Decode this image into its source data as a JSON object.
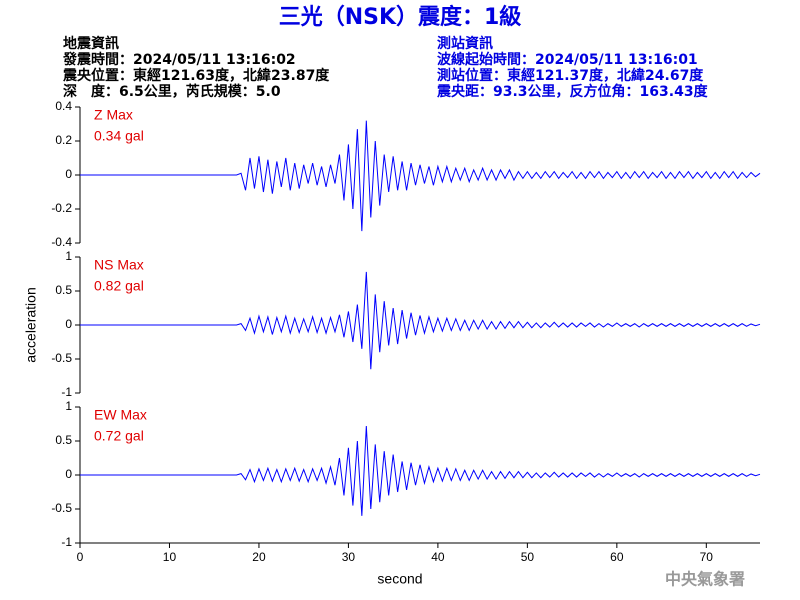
{
  "header": {
    "title": "三光（NSK）震度：1級",
    "left": [
      "地震資訊",
      "發震時間：2024/05/11 13:16:02",
      "震央位置：東經121.63度，北緯23.87度",
      "深　度：6.5公里，芮氏規模：5.0"
    ],
    "right": [
      "測站資訊",
      "波線起始時間：2024/05/11 13:16:01",
      "測站位置：東經121.37度，北緯24.67度",
      "震央距：93.3公里，反方位角：163.43度"
    ]
  },
  "footer": "中央氣象署",
  "chart_data": [
    {
      "type": "line",
      "color": "#0000ff",
      "annotations": [
        "Z Max",
        "0.34 gal"
      ],
      "xlim": [
        0,
        76
      ],
      "ylim": [
        -0.4,
        0.4
      ],
      "yticks": [
        -0.4,
        -0.2,
        0,
        0.2,
        0.4
      ],
      "x": [
        0,
        17.5,
        18,
        18.5,
        19,
        19.5,
        20,
        20.5,
        21,
        21.5,
        22,
        22.5,
        23,
        23.5,
        24,
        24.5,
        25,
        25.5,
        26,
        26.5,
        27,
        27.5,
        28,
        28.5,
        29,
        29.5,
        30,
        30.5,
        31,
        31.5,
        32,
        32.5,
        33,
        33.5,
        34,
        34.5,
        35,
        35.5,
        36,
        36.5,
        37,
        37.5,
        38,
        38.5,
        39,
        39.5,
        40,
        40.5,
        41,
        41.5,
        42,
        42.5,
        43,
        43.5,
        44,
        44.5,
        45,
        45.5,
        46,
        46.5,
        47,
        47.5,
        48,
        48.5,
        49,
        49.5,
        50,
        50.5,
        51,
        51.5,
        52,
        52.5,
        53,
        53.5,
        54,
        54.5,
        55,
        55.5,
        56,
        56.5,
        57,
        57.5,
        58,
        58.5,
        59,
        59.5,
        60,
        60.5,
        61,
        61.5,
        62,
        62.5,
        63,
        63.5,
        64,
        64.5,
        65,
        65.5,
        66,
        66.5,
        67,
        67.5,
        68,
        68.5,
        69,
        69.5,
        70,
        70.5,
        71,
        71.5,
        72,
        72.5,
        73,
        73.5,
        74,
        74.5,
        75,
        75.5,
        76
      ],
      "values": [
        0,
        0,
        0.01,
        -0.09,
        0.1,
        -0.08,
        0.11,
        -0.1,
        0.09,
        -0.11,
        0.08,
        -0.07,
        0.1,
        -0.09,
        0.07,
        -0.08,
        0.06,
        -0.05,
        0.07,
        -0.06,
        0.05,
        -0.07,
        0.06,
        -0.05,
        0.12,
        -0.15,
        0.18,
        -0.2,
        0.27,
        -0.33,
        0.32,
        -0.25,
        0.2,
        -0.18,
        0.12,
        -0.1,
        0.11,
        -0.09,
        0.08,
        -0.09,
        0.07,
        -0.06,
        0.06,
        -0.05,
        0.05,
        -0.06,
        0.05,
        -0.04,
        0.05,
        -0.04,
        0.04,
        -0.03,
        0.04,
        -0.04,
        0.03,
        -0.03,
        0.04,
        -0.03,
        0.03,
        -0.03,
        0.03,
        -0.02,
        0.03,
        -0.03,
        0.02,
        -0.02,
        0.02,
        -0.02,
        0.015,
        -0.02,
        0.02,
        -0.015,
        0.02,
        -0.02,
        0.015,
        -0.015,
        0.02,
        -0.02,
        0.015,
        -0.02,
        0.02,
        -0.015,
        0.02,
        -0.02,
        0.015,
        -0.015,
        0.02,
        -0.02,
        0.015,
        -0.02,
        0.02,
        -0.015,
        0.02,
        -0.02,
        0.015,
        -0.015,
        0.02,
        -0.02,
        0.015,
        -0.02,
        0.02,
        -0.015,
        0.02,
        -0.02,
        0.015,
        -0.015,
        0.02,
        -0.02,
        0.015,
        -0.02,
        0.02,
        -0.015,
        0.02,
        -0.02,
        0.015,
        -0.015,
        0.015,
        -0.01,
        0.01
      ]
    },
    {
      "type": "line",
      "color": "#0000ff",
      "annotations": [
        "NS Max",
        "0.82 gal"
      ],
      "ylabel": "acceleration",
      "xlim": [
        0,
        76
      ],
      "ylim": [
        -1,
        1
      ],
      "yticks": [
        -1,
        -0.5,
        0,
        0.5,
        1
      ],
      "x": [
        0,
        17.5,
        18,
        18.5,
        19,
        19.5,
        20,
        20.5,
        21,
        21.5,
        22,
        22.5,
        23,
        23.5,
        24,
        24.5,
        25,
        25.5,
        26,
        26.5,
        27,
        27.5,
        28,
        28.5,
        29,
        29.5,
        30,
        30.5,
        31,
        31.5,
        32,
        32.5,
        33,
        33.5,
        34,
        34.5,
        35,
        35.5,
        36,
        36.5,
        37,
        37.5,
        38,
        38.5,
        39,
        39.5,
        40,
        40.5,
        41,
        41.5,
        42,
        42.5,
        43,
        43.5,
        44,
        44.5,
        45,
        45.5,
        46,
        46.5,
        47,
        47.5,
        48,
        48.5,
        49,
        49.5,
        50,
        50.5,
        51,
        51.5,
        52,
        52.5,
        53,
        53.5,
        54,
        54.5,
        55,
        55.5,
        56,
        56.5,
        57,
        57.5,
        58,
        58.5,
        59,
        59.5,
        60,
        60.5,
        61,
        61.5,
        62,
        62.5,
        63,
        63.5,
        64,
        64.5,
        65,
        65.5,
        66,
        66.5,
        67,
        67.5,
        68,
        68.5,
        69,
        69.5,
        70,
        70.5,
        71,
        71.5,
        72,
        72.5,
        73,
        73.5,
        74,
        74.5,
        75,
        75.5,
        76
      ],
      "values": [
        0,
        0,
        0.02,
        -0.08,
        0.1,
        -0.12,
        0.13,
        -0.1,
        0.12,
        -0.14,
        0.11,
        -0.1,
        0.13,
        -0.12,
        0.1,
        -0.11,
        0.09,
        -0.1,
        0.12,
        -0.11,
        0.1,
        -0.12,
        0.11,
        -0.1,
        0.15,
        -0.18,
        0.2,
        -0.25,
        0.3,
        -0.35,
        0.78,
        -0.65,
        0.45,
        -0.4,
        0.35,
        -0.3,
        0.25,
        -0.28,
        0.22,
        -0.2,
        0.18,
        -0.15,
        0.14,
        -0.12,
        0.12,
        -0.1,
        0.1,
        -0.09,
        0.1,
        -0.08,
        0.09,
        -0.08,
        0.07,
        -0.08,
        0.07,
        -0.06,
        0.07,
        -0.06,
        0.05,
        -0.06,
        0.05,
        -0.05,
        0.05,
        -0.04,
        0.05,
        -0.04,
        0.04,
        -0.04,
        0.03,
        -0.04,
        0.03,
        -0.03,
        0.04,
        -0.03,
        0.03,
        -0.03,
        0.03,
        -0.03,
        0.03,
        -0.02,
        0.03,
        -0.03,
        0.02,
        -0.03,
        0.02,
        -0.02,
        0.03,
        -0.02,
        0.02,
        -0.02,
        0.02,
        -0.03,
        0.02,
        -0.02,
        0.02,
        -0.02,
        0.02,
        -0.02,
        0.02,
        -0.02,
        0.02,
        -0.02,
        0.02,
        -0.02,
        0.02,
        -0.02,
        0.02,
        -0.02,
        0.02,
        -0.02,
        0.02,
        -0.02,
        0.02,
        -0.02,
        0.02,
        -0.02,
        0.015,
        -0.01,
        0.01
      ]
    },
    {
      "type": "line",
      "color": "#0000ff",
      "annotations": [
        "EW Max",
        "0.72 gal"
      ],
      "xlabel": "second",
      "xlim": [
        0,
        76
      ],
      "ylim": [
        -1,
        1
      ],
      "yticks": [
        -1,
        -0.5,
        0,
        0.5,
        1
      ],
      "xticks": [
        0,
        10,
        20,
        30,
        40,
        50,
        60,
        70
      ],
      "x": [
        0,
        17.5,
        18,
        18.5,
        19,
        19.5,
        20,
        20.5,
        21,
        21.5,
        22,
        22.5,
        23,
        23.5,
        24,
        24.5,
        25,
        25.5,
        26,
        26.5,
        27,
        27.5,
        28,
        28.5,
        29,
        29.5,
        30,
        30.5,
        31,
        31.5,
        32,
        32.5,
        33,
        33.5,
        34,
        34.5,
        35,
        35.5,
        36,
        36.5,
        37,
        37.5,
        38,
        38.5,
        39,
        39.5,
        40,
        40.5,
        41,
        41.5,
        42,
        42.5,
        43,
        43.5,
        44,
        44.5,
        45,
        45.5,
        46,
        46.5,
        47,
        47.5,
        48,
        48.5,
        49,
        49.5,
        50,
        50.5,
        51,
        51.5,
        52,
        52.5,
        53,
        53.5,
        54,
        54.5,
        55,
        55.5,
        56,
        56.5,
        57,
        57.5,
        58,
        58.5,
        59,
        59.5,
        60,
        60.5,
        61,
        61.5,
        62,
        62.5,
        63,
        63.5,
        64,
        64.5,
        65,
        65.5,
        66,
        66.5,
        67,
        67.5,
        68,
        68.5,
        69,
        69.5,
        70,
        70.5,
        71,
        71.5,
        72,
        72.5,
        73,
        73.5,
        74,
        74.5,
        75,
        75.5,
        76
      ],
      "values": [
        0,
        0,
        0.02,
        -0.07,
        0.08,
        -0.1,
        0.09,
        -0.08,
        0.1,
        -0.09,
        0.08,
        -0.1,
        0.09,
        -0.08,
        0.1,
        -0.09,
        0.08,
        -0.1,
        0.09,
        -0.08,
        0.1,
        -0.12,
        0.12,
        -0.15,
        0.25,
        -0.3,
        0.4,
        -0.45,
        0.5,
        -0.6,
        0.72,
        -0.5,
        0.45,
        -0.4,
        0.35,
        -0.3,
        0.3,
        -0.25,
        0.2,
        -0.22,
        0.18,
        -0.15,
        0.15,
        -0.12,
        0.12,
        -0.1,
        0.1,
        -0.09,
        0.1,
        -0.08,
        0.09,
        -0.08,
        0.07,
        -0.08,
        0.07,
        -0.06,
        0.07,
        -0.06,
        0.05,
        -0.06,
        0.05,
        -0.05,
        0.05,
        -0.04,
        0.05,
        -0.04,
        0.04,
        -0.04,
        0.03,
        -0.04,
        0.03,
        -0.03,
        0.04,
        -0.03,
        0.03,
        -0.03,
        0.03,
        -0.03,
        0.03,
        -0.02,
        0.03,
        -0.03,
        0.02,
        -0.03,
        0.02,
        -0.02,
        0.03,
        -0.02,
        0.02,
        -0.02,
        0.02,
        -0.03,
        0.02,
        -0.02,
        0.02,
        -0.02,
        0.02,
        -0.02,
        0.02,
        -0.02,
        0.02,
        -0.02,
        0.02,
        -0.02,
        0.02,
        -0.02,
        0.02,
        -0.02,
        0.02,
        -0.02,
        0.02,
        -0.02,
        0.02,
        -0.02,
        0.02,
        -0.02,
        0.015,
        -0.01,
        0.01
      ]
    }
  ]
}
